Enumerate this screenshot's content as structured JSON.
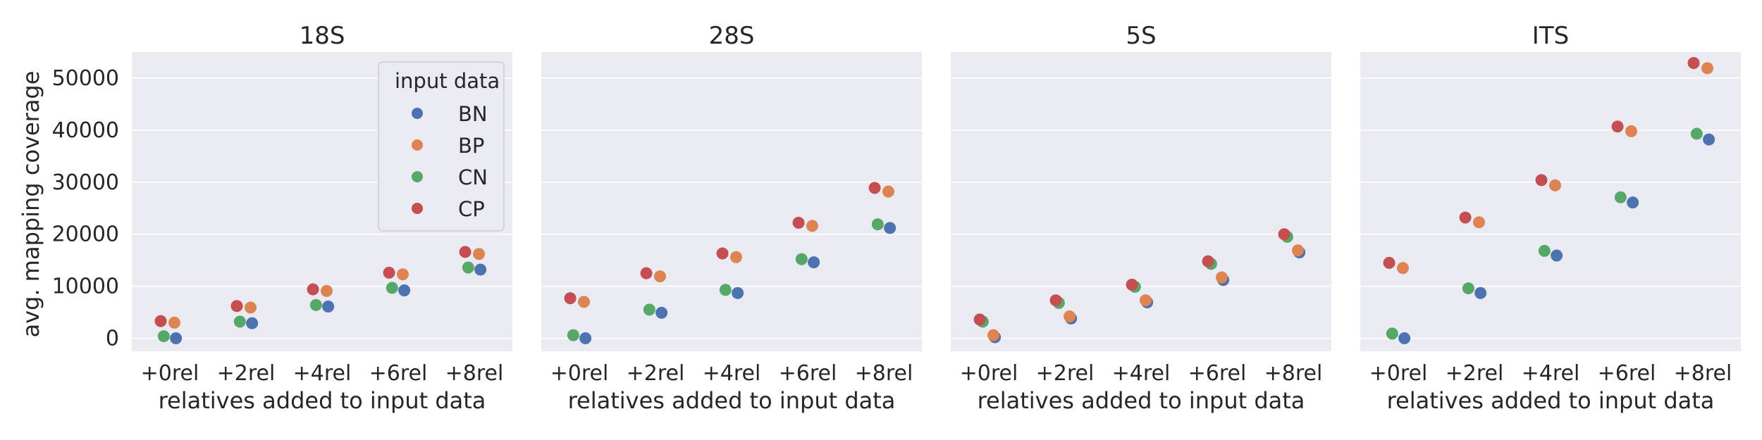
{
  "chart_data": {
    "type": "scatter",
    "panels": [
      {
        "title": "18S",
        "series": [
          {
            "name": "BN",
            "values": [
              0,
              2900,
              6100,
              9200,
              13200
            ]
          },
          {
            "name": "BP",
            "values": [
              3000,
              5900,
              9100,
              12300,
              16200
            ]
          },
          {
            "name": "CN",
            "values": [
              400,
              3200,
              6400,
              9700,
              13600
            ]
          },
          {
            "name": "CP",
            "values": [
              3300,
              6200,
              9400,
              12600,
              16600
            ]
          }
        ]
      },
      {
        "title": "28S",
        "series": [
          {
            "name": "BN",
            "values": [
              0,
              4900,
              8700,
              14600,
              21200
            ]
          },
          {
            "name": "BP",
            "values": [
              7000,
              11900,
              15600,
              21600,
              28200
            ]
          },
          {
            "name": "CN",
            "values": [
              600,
              5500,
              9300,
              15200,
              21900
            ]
          },
          {
            "name": "CP",
            "values": [
              7700,
              12500,
              16300,
              22200,
              28900
            ]
          }
        ]
      },
      {
        "title": "5S",
        "series": [
          {
            "name": "BN",
            "values": [
              200,
              3800,
              6900,
              11200,
              16500
            ]
          },
          {
            "name": "BP",
            "values": [
              600,
              4200,
              7300,
              11700,
              16900
            ]
          },
          {
            "name": "CN",
            "values": [
              3200,
              6800,
              9900,
              14300,
              19500
            ]
          },
          {
            "name": "CP",
            "values": [
              3600,
              7300,
              10300,
              14800,
              20000
            ]
          }
        ]
      },
      {
        "title": "ITS",
        "series": [
          {
            "name": "BN",
            "values": [
              0,
              8700,
              15900,
              26100,
              38200
            ]
          },
          {
            "name": "BP",
            "values": [
              13500,
              22300,
              29400,
              39800,
              51900
            ]
          },
          {
            "name": "CN",
            "values": [
              900,
              9600,
              16800,
              27100,
              39300
            ]
          },
          {
            "name": "CP",
            "values": [
              14500,
              23200,
              30400,
              40700,
              52900
            ]
          }
        ]
      }
    ],
    "categories": [
      "+0rel",
      "+2rel",
      "+4rel",
      "+6rel",
      "+8rel"
    ],
    "xlabel": "relatives added to input data",
    "ylabel": "avg. mapping coverage",
    "yticks": [
      "0",
      "10000",
      "20000",
      "30000",
      "40000",
      "50000"
    ],
    "ytick_values": [
      0,
      10000,
      20000,
      30000,
      40000,
      50000
    ],
    "ylim": [
      -2500,
      55000
    ],
    "legend": {
      "title": "input data",
      "entries": [
        "BN",
        "BP",
        "CN",
        "CP"
      ],
      "placement": "upper-right of first panel"
    },
    "colors": {
      "BN": "#4c72b0",
      "BP": "#dd8452",
      "CN": "#55a868",
      "CP": "#c44e52"
    },
    "grid": true
  }
}
